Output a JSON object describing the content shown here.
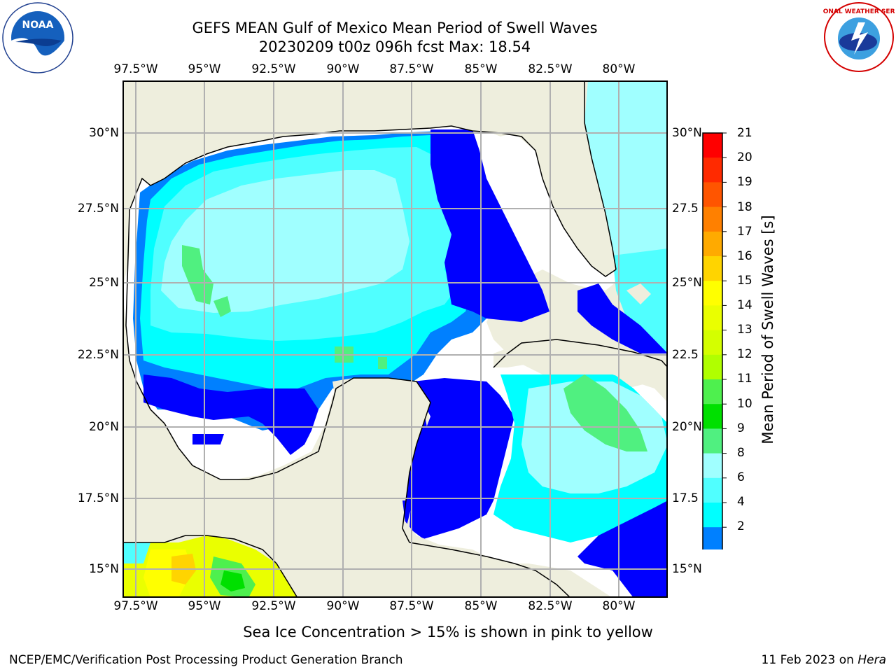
{
  "title": {
    "line1": "GEFS MEAN Gulf of Mexico Mean Period of Swell Waves",
    "line2": "20230209 t00z 096h fcst   Max: 18.54"
  },
  "map": {
    "lon_ticks": [
      "97.5°W",
      "95°W",
      "92.5°W",
      "90°W",
      "87.5°W",
      "85°W",
      "82.5°W",
      "80°W"
    ],
    "lat_ticks_left": [
      "30°N",
      "27.5°N",
      "25°N",
      "22.5°N",
      "20°N",
      "17.5°N",
      "15°N"
    ],
    "lat_ticks_right": [
      "30°N",
      "27.5",
      "25°N",
      "22.5",
      "20°N",
      "17.5",
      "15°N"
    ],
    "land_color": "#eeeedd",
    "grid_color": "#b0b0b0"
  },
  "colorbar": {
    "title": "Mean Period of Swell Waves [s]",
    "labels": [
      "21",
      "20",
      "19",
      "18",
      "17",
      "16",
      "15",
      "14",
      "13",
      "12",
      "11",
      "10",
      "9",
      "8",
      "6",
      "4",
      "2"
    ],
    "colors": [
      "#ff0000",
      "#ff2a00",
      "#ff5500",
      "#ff8000",
      "#ffaa00",
      "#ffd400",
      "#ffff00",
      "#eaff00",
      "#d4ff00",
      "#b0ff00",
      "#4ef04e",
      "#00e000",
      "#50f080",
      "#a0ffff",
      "#50ffff",
      "#00ffff",
      "#0080ff"
    ],
    "extend_color": "#0000ff"
  },
  "note": "Sea Ice Concentration > 15% is shown in pink to yellow",
  "footer": {
    "left": "NCEP/EMC/Verification Post Processing Product Generation Branch",
    "date": "11 Feb 2023 on ",
    "host": "Hera"
  },
  "logos": {
    "left": "NOAA",
    "right_text": "NATIONAL WEATHER SERVICE"
  }
}
